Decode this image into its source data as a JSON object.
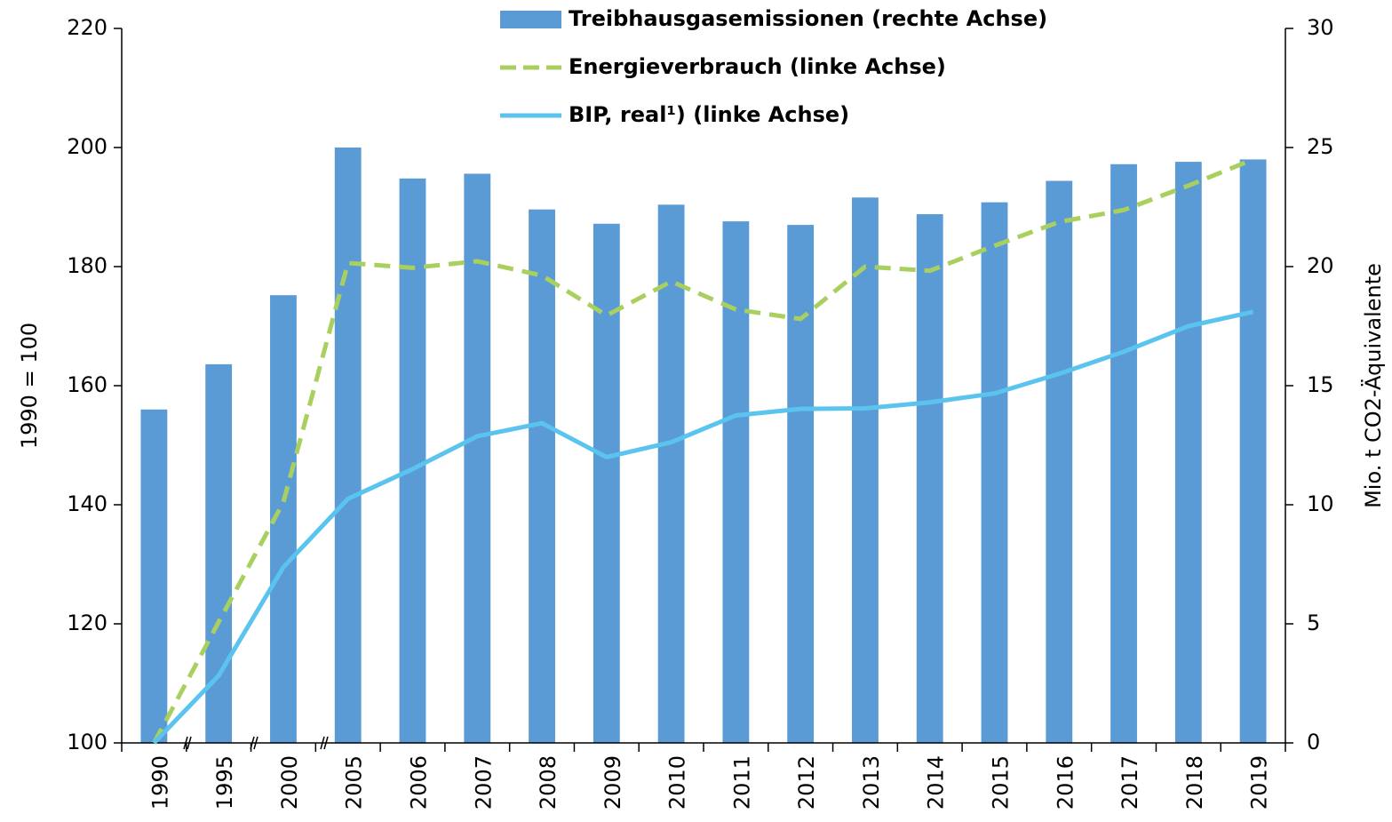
{
  "chart_data": {
    "type": "combo",
    "categories": [
      "1990",
      "1995",
      "2000",
      "2005",
      "2006",
      "2007",
      "2008",
      "2009",
      "2010",
      "2011",
      "2012",
      "2013",
      "2014",
      "2015",
      "2016",
      "2017",
      "2018",
      "2019"
    ],
    "y_label": "1990 = 100",
    "y2_label": "Mio. t CO2-Äquivalente",
    "ylim": [
      100,
      220
    ],
    "yticks": [
      100,
      120,
      140,
      160,
      180,
      200,
      220
    ],
    "y2lim": [
      0,
      30
    ],
    "y2ticks": [
      0,
      5,
      10,
      15,
      20,
      25,
      30
    ],
    "legend": "top",
    "series": [
      {
        "name": "Treibhausgasemissionen (rechte Achse)",
        "type": "bar",
        "axis": "y2",
        "color": "#5b9bd5",
        "values": [
          14.0,
          15.9,
          18.8,
          25.0,
          23.7,
          23.9,
          22.4,
          21.8,
          22.6,
          21.9,
          21.75,
          22.9,
          22.2,
          22.7,
          23.6,
          24.3,
          24.4,
          24.5
        ]
      },
      {
        "name": "Energieverbrauch (linke Achse)",
        "type": "line",
        "line_style": "dashed",
        "color": "#a9d05f",
        "values": [
          100,
          120.3,
          140.4,
          180.6,
          179.8,
          180.9,
          178.5,
          171.8,
          177.5,
          172.8,
          171.2,
          180,
          179.3,
          183.5,
          187.5,
          189.5,
          193.6,
          198
        ]
      },
      {
        "name": "BIP, real¹) (linke Achse)",
        "type": "line",
        "line_style": "solid",
        "color": "#5bc4ee",
        "values": [
          100,
          111.3,
          129.5,
          141,
          146,
          151.5,
          153.7,
          148,
          150.5,
          155,
          156.1,
          156.2,
          157.2,
          158.7,
          162,
          165.7,
          170,
          172.4
        ]
      }
    ]
  }
}
